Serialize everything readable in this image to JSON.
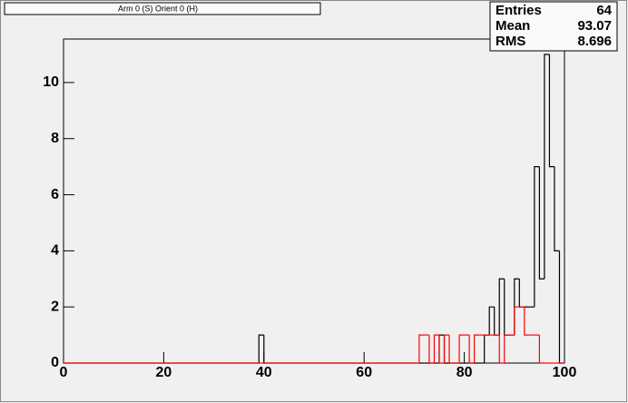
{
  "chart_data": {
    "type": "histogram",
    "title": "Arm 0 (S) Orient 0 (H)",
    "stats": {
      "labels": [
        "Entries",
        "Mean",
        "RMS"
      ],
      "values": [
        64,
        93.07,
        8.696
      ]
    },
    "bins": [
      0,
      1,
      2,
      3,
      4,
      5,
      6,
      7,
      8,
      9,
      10,
      11,
      12,
      13,
      14,
      15,
      16,
      17,
      18,
      19,
      20,
      21,
      22,
      23,
      24,
      25,
      26,
      27,
      28,
      29,
      30,
      31,
      32,
      33,
      34,
      35,
      36,
      37,
      38,
      39,
      40,
      41,
      42,
      43,
      44,
      45,
      46,
      47,
      48,
      49,
      50,
      51,
      52,
      53,
      54,
      55,
      56,
      57,
      58,
      59,
      60,
      61,
      62,
      63,
      64,
      65,
      66,
      67,
      68,
      69,
      70,
      71,
      72,
      73,
      74,
      75,
      76,
      77,
      78,
      79,
      80,
      81,
      82,
      83,
      84,
      85,
      86,
      87,
      88,
      89,
      90,
      91,
      92,
      93,
      94,
      95,
      96,
      97,
      98,
      99,
      100
    ],
    "series": [
      {
        "color": "#000000",
        "values": [
          0,
          0,
          0,
          0,
          0,
          0,
          0,
          0,
          0,
          0,
          0,
          0,
          0,
          0,
          0,
          0,
          0,
          0,
          0,
          0,
          0,
          0,
          0,
          0,
          0,
          0,
          0,
          0,
          0,
          0,
          0,
          0,
          0,
          0,
          0,
          0,
          0,
          0,
          0,
          1,
          0,
          0,
          0,
          0,
          0,
          0,
          0,
          0,
          0,
          0,
          0,
          0,
          0,
          0,
          0,
          0,
          0,
          0,
          0,
          0,
          0,
          0,
          0,
          0,
          0,
          0,
          0,
          0,
          0,
          0,
          0,
          0,
          0,
          0,
          0,
          1,
          0,
          0,
          0,
          0,
          0,
          0,
          0,
          0,
          1,
          2,
          1,
          3,
          1,
          1,
          3,
          2,
          2,
          2,
          7,
          3,
          11,
          7,
          4,
          0
        ]
      },
      {
        "color": "#ff0000",
        "values": [
          0,
          0,
          0,
          0,
          0,
          0,
          0,
          0,
          0,
          0,
          0,
          0,
          0,
          0,
          0,
          0,
          0,
          0,
          0,
          0,
          0,
          0,
          0,
          0,
          0,
          0,
          0,
          0,
          0,
          0,
          0,
          0,
          0,
          0,
          0,
          0,
          0,
          0,
          0,
          0,
          0,
          0,
          0,
          0,
          0,
          0,
          0,
          0,
          0,
          0,
          0,
          0,
          0,
          0,
          0,
          0,
          0,
          0,
          0,
          0,
          0,
          0,
          0,
          0,
          0,
          0,
          0,
          0,
          0,
          0,
          0,
          1,
          1,
          0,
          1,
          0,
          1,
          0,
          0,
          1,
          1,
          0,
          1,
          1,
          1,
          1,
          1,
          0,
          1,
          1,
          2,
          2,
          1,
          1,
          1,
          0,
          0,
          0,
          0,
          0
        ]
      }
    ],
    "xlim": [
      0,
      100
    ],
    "xticks": [
      0,
      20,
      40,
      60,
      80,
      100
    ],
    "ylim": [
      0,
      11.55
    ],
    "yticks": [
      0,
      2,
      4,
      6,
      8,
      10
    ]
  }
}
